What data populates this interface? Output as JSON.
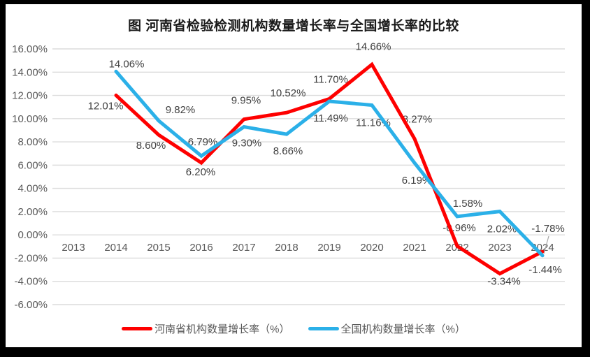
{
  "title": "图  河南省检验检测机构数量增长率与全国增长率的比较",
  "chart_data": {
    "type": "line",
    "title": "图  河南省检验检测机构数量增长率与全国增长率的比较",
    "categories": [
      "2013",
      "2014",
      "2015",
      "2016",
      "2017",
      "2018",
      "2019",
      "2020",
      "2021",
      "2022",
      "2023",
      "2024"
    ],
    "series": [
      {
        "name": "河南省机构数量增长率（%）",
        "color": "#FE0000",
        "values": [
          null,
          12.01,
          8.6,
          6.2,
          9.95,
          10.52,
          11.7,
          14.66,
          8.27,
          -0.96,
          -3.34,
          -1.44
        ]
      },
      {
        "name": "全国机构数量增长率（%）",
        "color": "#2BB0E8",
        "values": [
          null,
          14.06,
          9.82,
          6.79,
          9.3,
          8.66,
          11.49,
          11.16,
          6.19,
          1.58,
          2.02,
          -1.78
        ]
      }
    ],
    "y_axis": {
      "min": -6,
      "max": 16,
      "step": 2,
      "tick_labels": [
        "16.00%",
        "14.00%",
        "12.00%",
        "10.00%",
        "8.00%",
        "6.00%",
        "4.00%",
        "2.00%",
        "0.00%",
        "-2.00%",
        "-4.00%",
        "-6.00%"
      ]
    },
    "grid": true,
    "data_labels": true,
    "legend_position": "bottom"
  },
  "colors": {
    "gridline": "#DCDCDC",
    "axis_text": "#595959",
    "label_text": "#404040",
    "leader_line": "#A6A6A6",
    "frame": "#000000",
    "chart_background": "#FFFFFF"
  }
}
